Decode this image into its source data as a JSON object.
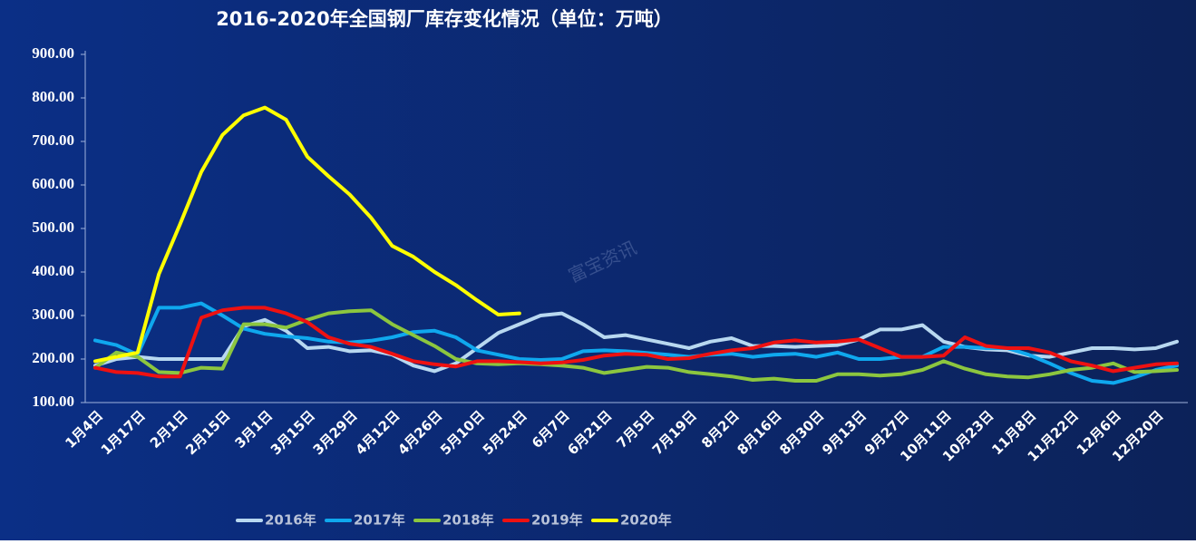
{
  "chart_data": {
    "type": "line",
    "title": "2016-2020年全国钢厂库存变化情况（单位：万吨）",
    "watermark": "富宝资讯",
    "categories": [
      "1月4日",
      null,
      "1月17日",
      null,
      "2月1日",
      null,
      "2月15日",
      null,
      "3月1日",
      null,
      "3月15日",
      null,
      "3月29日",
      null,
      "4月12日",
      null,
      "4月26日",
      null,
      "5月10日",
      null,
      "5月24日",
      null,
      "6月7日",
      null,
      "6月21日",
      null,
      "7月5日",
      null,
      "7月19日",
      null,
      "8月2日",
      null,
      "8月16日",
      null,
      "8月30日",
      null,
      "9月13日",
      null,
      "9月27日",
      null,
      "10月11日",
      null,
      "10月23日",
      null,
      "11月8日",
      null,
      "11月22日",
      null,
      "12月6日",
      null,
      "12月20日",
      null
    ],
    "ylim": [
      100,
      900
    ],
    "yticks": [
      {
        "value": 100,
        "label": "100.00"
      },
      {
        "value": 200,
        "label": "200.00"
      },
      {
        "value": 300,
        "label": "300.00"
      },
      {
        "value": 400,
        "label": "400.00"
      },
      {
        "value": 500,
        "label": "500.00"
      },
      {
        "value": 600,
        "label": "600.00"
      },
      {
        "value": 700,
        "label": "700.00"
      },
      {
        "value": 800,
        "label": "800.00"
      },
      {
        "value": 900,
        "label": "900.00"
      }
    ],
    "legend": "bottom",
    "series": [
      {
        "name": "2016年",
        "color": "#b8d8f0",
        "values": [
          185,
          200,
          205,
          200,
          200,
          200,
          200,
          275,
          290,
          265,
          225,
          228,
          218,
          220,
          210,
          185,
          172,
          190,
          225,
          260,
          280,
          300,
          305,
          280,
          250,
          255,
          245,
          235,
          225,
          240,
          248,
          230,
          230,
          228,
          230,
          232,
          245,
          268,
          268,
          278,
          240,
          228,
          222,
          220,
          208,
          205,
          215,
          225,
          225,
          222,
          225,
          240
        ]
      },
      {
        "name": "2017年",
        "color": "#0fa8ee",
        "values": [
          243,
          232,
          210,
          318,
          318,
          328,
          300,
          270,
          258,
          252,
          248,
          240,
          238,
          242,
          250,
          262,
          265,
          250,
          220,
          210,
          200,
          198,
          200,
          218,
          220,
          218,
          214,
          210,
          205,
          210,
          212,
          205,
          210,
          212,
          205,
          215,
          200,
          200,
          205,
          205,
          228,
          228,
          225,
          225,
          210,
          190,
          168,
          150,
          145,
          158,
          175,
          185
        ]
      },
      {
        "name": "2018年",
        "color": "#8cc63f",
        "values": [
          180,
          215,
          205,
          170,
          168,
          180,
          178,
          280,
          280,
          272,
          290,
          305,
          310,
          312,
          280,
          255,
          230,
          200,
          190,
          188,
          190,
          188,
          185,
          180,
          168,
          175,
          182,
          180,
          170,
          165,
          160,
          152,
          155,
          150,
          150,
          165,
          165,
          162,
          165,
          175,
          195,
          178,
          165,
          160,
          158,
          165,
          175,
          180,
          190,
          170,
          172,
          175
        ]
      },
      {
        "name": "2019年",
        "color": "#ee1111",
        "values": [
          180,
          170,
          168,
          160,
          160,
          295,
          312,
          318,
          318,
          305,
          285,
          250,
          235,
          228,
          212,
          195,
          188,
          183,
          195,
          195,
          193,
          190,
          192,
          198,
          208,
          212,
          210,
          200,
          202,
          212,
          220,
          225,
          238,
          243,
          238,
          240,
          245,
          225,
          205,
          205,
          208,
          250,
          230,
          225,
          225,
          215,
          195,
          185,
          172,
          180,
          188,
          190
        ]
      },
      {
        "name": "2020年",
        "color": "#ffff00",
        "values": [
          195,
          205,
          215,
          395,
          510,
          630,
          715,
          760,
          778,
          750,
          665,
          620,
          578,
          525,
          460,
          435,
          400,
          370,
          335,
          302,
          305,
          null,
          null,
          null,
          null,
          null,
          null,
          null,
          null,
          null,
          null,
          null,
          null,
          null,
          null,
          null,
          null,
          null,
          null,
          null,
          null,
          null,
          null,
          null,
          null,
          null,
          null,
          null,
          null,
          null,
          null,
          null
        ]
      }
    ]
  }
}
